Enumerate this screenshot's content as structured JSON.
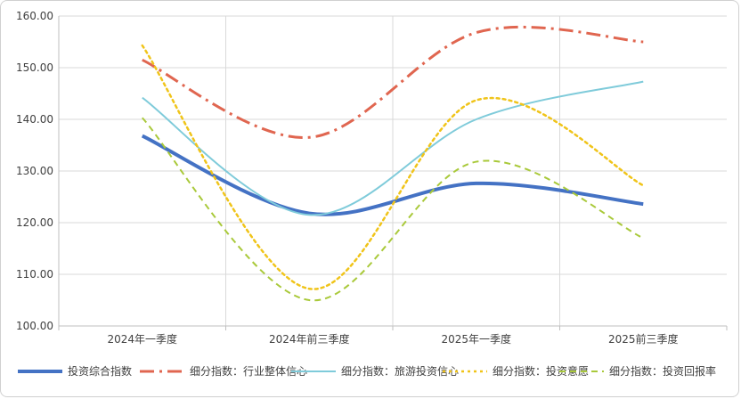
{
  "chart_data": {
    "type": "line",
    "title": "",
    "xlabel": "",
    "ylabel": "",
    "categories": [
      "2024年一季度",
      "2024年前三季度",
      "2025年一季度",
      "2025前三季度"
    ],
    "ylim": [
      100,
      160
    ],
    "yticks": [
      "100.00",
      "110.00",
      "120.00",
      "130.00",
      "140.00",
      "150.00",
      "160.00"
    ],
    "grid": true,
    "legend_position": "bottom",
    "series": [
      {
        "name": "投资综合指数",
        "values": [
          136.8,
          121.8,
          127.6,
          123.6
        ],
        "color": "#4472C4",
        "dash": "solid",
        "width": 4
      },
      {
        "name": "细分指数：行业整体信心",
        "values": [
          151.5,
          136.5,
          156.8,
          155.0
        ],
        "color": "#E06650",
        "dash": "dashdot",
        "width": 3
      },
      {
        "name": "细分指数：旅游投资信心",
        "values": [
          144.2,
          121.5,
          140.0,
          147.3
        ],
        "color": "#7FCBDA",
        "dash": "solid",
        "width": 2
      },
      {
        "name": "细分指数：投资意愿",
        "values": [
          154.3,
          107.2,
          143.7,
          127.2
        ],
        "color": "#F0C419",
        "dash": "dot",
        "width": 2.5
      },
      {
        "name": "细分指数：投资回报率",
        "values": [
          140.3,
          105.0,
          131.8,
          117.0
        ],
        "color": "#A9C93A",
        "dash": "dash",
        "width": 2
      }
    ]
  }
}
